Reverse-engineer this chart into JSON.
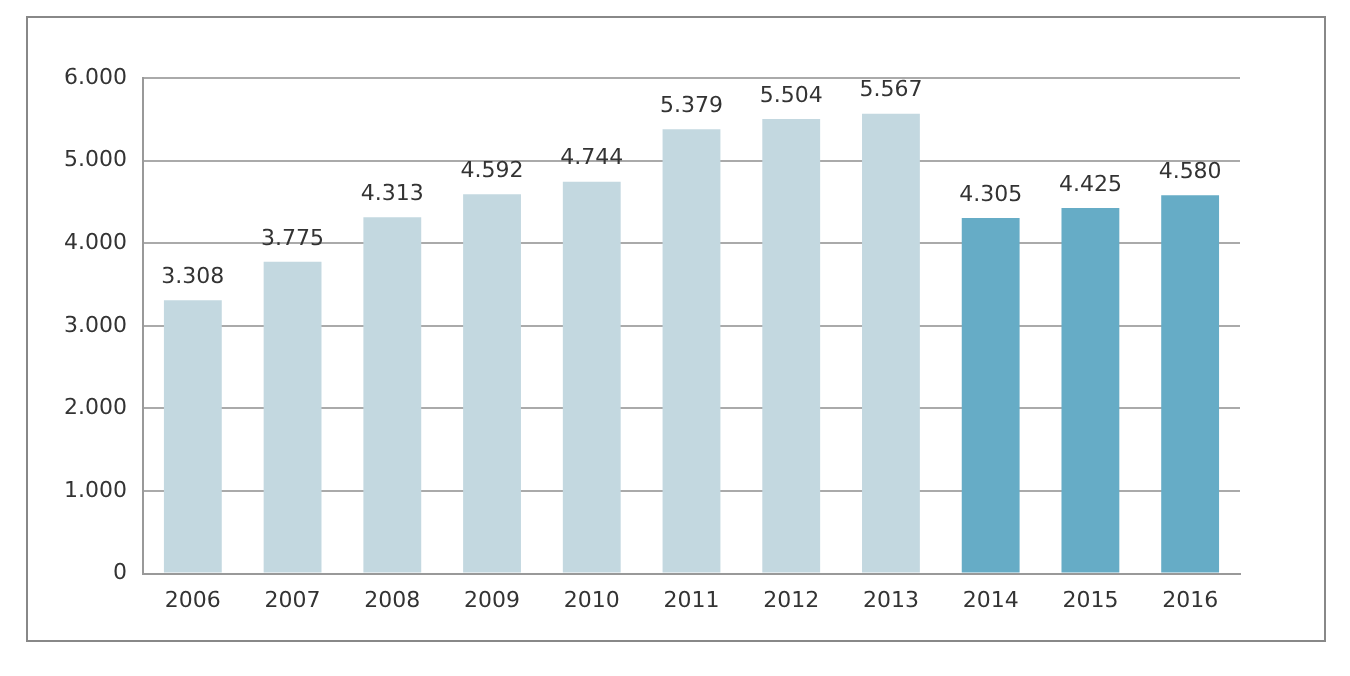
{
  "chart_data": {
    "type": "bar",
    "categories": [
      "2006",
      "2007",
      "2008",
      "2009",
      "2010",
      "2011",
      "2012",
      "2013",
      "2014",
      "2015",
      "2016"
    ],
    "values": [
      3308,
      3775,
      4313,
      4592,
      4744,
      5379,
      5504,
      5567,
      4305,
      4425,
      4580
    ],
    "colors": [
      "#c3d8e0",
      "#c3d8e0",
      "#c3d8e0",
      "#c3d8e0",
      "#c3d8e0",
      "#c3d8e0",
      "#c3d8e0",
      "#c3d8e0",
      "#66acc6",
      "#66acc6",
      "#66acc6"
    ],
    "value_labels": [
      "3.308",
      "3.775",
      "4.313",
      "4.592",
      "4.744",
      "5.379",
      "5.504",
      "5.567",
      "4.305",
      "4.425",
      "4.580"
    ],
    "ylim": [
      0,
      6000
    ],
    "yticks": [
      0,
      {
        "value": 1000,
        "label": "1.000"
      },
      {
        "value": 2000,
        "label": "2.000"
      },
      {
        "value": 3000,
        "label": "3.000"
      },
      {
        "value": 4000,
        "label": "4.000"
      },
      {
        "value": 5000,
        "label": "5.000"
      },
      {
        "value": 6000,
        "label": "6.000"
      }
    ],
    "grid": "y",
    "legend": false
  }
}
